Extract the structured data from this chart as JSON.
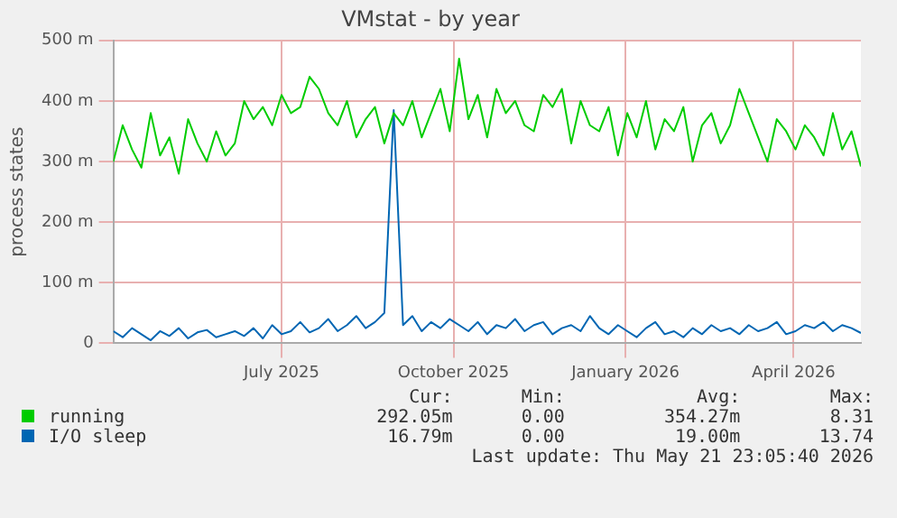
{
  "chart_data": {
    "type": "line",
    "title": "VMstat - by year",
    "ylabel": "process states",
    "x": [
      "2025-04-16",
      "2025-04-21",
      "2025-04-26",
      "2025-05-01",
      "2025-05-06",
      "2025-05-11",
      "2025-05-16",
      "2025-05-21",
      "2025-05-26",
      "2025-05-31",
      "2025-06-05",
      "2025-06-10",
      "2025-06-15",
      "2025-06-20",
      "2025-06-25",
      "2025-06-30",
      "2025-07-05",
      "2025-07-10",
      "2025-07-15",
      "2025-07-20",
      "2025-07-25",
      "2025-07-30",
      "2025-08-04",
      "2025-08-09",
      "2025-08-14",
      "2025-08-19",
      "2025-08-24",
      "2025-08-29",
      "2025-09-03",
      "2025-09-08",
      "2025-09-13",
      "2025-09-18",
      "2025-09-23",
      "2025-09-28",
      "2025-10-03",
      "2025-10-08",
      "2025-10-13",
      "2025-10-18",
      "2025-10-23",
      "2025-10-28",
      "2025-11-02",
      "2025-11-07",
      "2025-11-12",
      "2025-11-17",
      "2025-11-22",
      "2025-11-27",
      "2025-12-02",
      "2025-12-07",
      "2025-12-12",
      "2025-12-17",
      "2025-12-22",
      "2025-12-27",
      "2026-01-01",
      "2026-01-06",
      "2026-01-11",
      "2026-01-16",
      "2026-01-21",
      "2026-01-26",
      "2026-01-31",
      "2026-02-05",
      "2026-02-10",
      "2026-02-15",
      "2026-02-20",
      "2026-02-25",
      "2026-03-02",
      "2026-03-07",
      "2026-03-12",
      "2026-03-17",
      "2026-03-22",
      "2026-03-27",
      "2026-04-01",
      "2026-04-06",
      "2026-04-11",
      "2026-04-16",
      "2026-04-21",
      "2026-04-26",
      "2026-05-01",
      "2026-05-06",
      "2026-05-11",
      "2026-05-16",
      "2026-05-21"
    ],
    "series": [
      {
        "name": "running",
        "color": "#00cc00",
        "values": [
          300,
          360,
          320,
          290,
          380,
          310,
          340,
          280,
          370,
          330,
          300,
          350,
          310,
          330,
          400,
          370,
          390,
          360,
          410,
          380,
          390,
          440,
          420,
          380,
          360,
          400,
          340,
          370,
          390,
          330,
          380,
          360,
          400,
          340,
          380,
          420,
          350,
          470,
          370,
          410,
          340,
          420,
          380,
          400,
          360,
          350,
          410,
          390,
          420,
          330,
          400,
          360,
          350,
          390,
          310,
          380,
          340,
          400,
          320,
          370,
          350,
          390,
          300,
          360,
          380,
          330,
          360,
          420,
          380,
          340,
          300,
          370,
          350,
          320,
          360,
          340,
          310,
          380,
          320,
          350,
          292
        ]
      },
      {
        "name": "I/O sleep",
        "color": "#0066b3",
        "values": [
          20,
          10,
          25,
          15,
          5,
          20,
          12,
          25,
          8,
          18,
          22,
          10,
          15,
          20,
          12,
          25,
          8,
          30,
          15,
          20,
          35,
          18,
          25,
          40,
          20,
          30,
          45,
          25,
          35,
          50,
          385,
          30,
          45,
          20,
          35,
          25,
          40,
          30,
          20,
          35,
          15,
          30,
          25,
          40,
          20,
          30,
          35,
          15,
          25,
          30,
          20,
          45,
          25,
          15,
          30,
          20,
          10,
          25,
          35,
          15,
          20,
          10,
          25,
          15,
          30,
          20,
          25,
          15,
          30,
          20,
          25,
          35,
          15,
          20,
          30,
          25,
          35,
          20,
          30,
          25,
          17
        ]
      }
    ],
    "xlim": [
      "2025-04-16",
      "2026-05-21"
    ],
    "xticks": [
      {
        "value": "2025-07-15",
        "label": "July 2025"
      },
      {
        "value": "2025-10-15",
        "label": "October 2025"
      },
      {
        "value": "2026-01-15",
        "label": "January 2026"
      },
      {
        "value": "2026-04-15",
        "label": "April 2026"
      }
    ],
    "ylim": [
      0,
      500
    ],
    "yticks": [
      0,
      {
        "value": 100,
        "label": "100 m"
      },
      {
        "value": 200,
        "label": "200 m"
      },
      {
        "value": 300,
        "label": "300 m"
      },
      {
        "value": 400,
        "label": "400 m"
      },
      {
        "value": 500,
        "label": "500 m"
      }
    ],
    "grid": true,
    "legend": "bottom",
    "annotations": [
      "Cur:",
      "Min:",
      "Avg:",
      "Max:",
      "292.05m",
      "0.00",
      "354.27m",
      "8.31",
      "16.79m",
      "0.00",
      "19.00m",
      "13.74",
      "Last update: Thu May 21 23:05:40 2026"
    ]
  }
}
